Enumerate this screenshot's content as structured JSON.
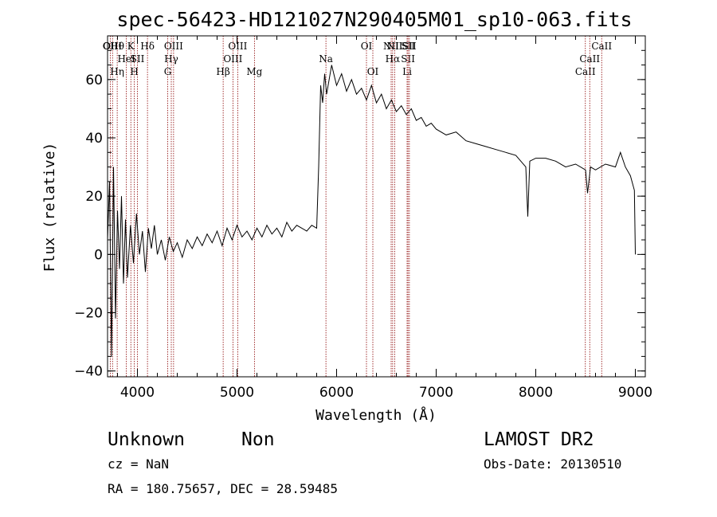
{
  "chart_data": {
    "type": "line",
    "title": "spec-56423-HD121027N290405M01_sp10-063.fits",
    "xlabel": "Wavelength (Å)",
    "ylabel": "Flux (relative)",
    "xlim": [
      3700,
      9100
    ],
    "ylim": [
      -42,
      75
    ],
    "x_ticks": [
      4000,
      5000,
      6000,
      7000,
      8000,
      9000
    ],
    "y_ticks": [
      -40,
      -20,
      0,
      20,
      40,
      60
    ],
    "grid": false,
    "series": [
      {
        "x": [
          3700,
          3720,
          3740,
          3760,
          3780,
          3800,
          3820,
          3840,
          3860,
          3880,
          3900,
          3930,
          3960,
          3990,
          4020,
          4050,
          4080,
          4110,
          4140,
          4170,
          4200,
          4240,
          4280,
          4320,
          4360,
          4400,
          4450,
          4500,
          4550,
          4600,
          4650,
          4700,
          4750,
          4800,
          4850,
          4900,
          4950,
          5000,
          5050,
          5100,
          5150,
          5200,
          5250,
          5300,
          5350,
          5400,
          5450,
          5500,
          5550,
          5600,
          5650,
          5700,
          5750,
          5800,
          5820,
          5840,
          5860,
          5880,
          5900,
          5950,
          6000,
          6050,
          6100,
          6150,
          6200,
          6250,
          6300,
          6350,
          6400,
          6450,
          6500,
          6550,
          6600,
          6650,
          6700,
          6750,
          6800,
          6850,
          6900,
          6950,
          7000,
          7100,
          7200,
          7300,
          7400,
          7500,
          7600,
          7700,
          7800,
          7900,
          7920,
          7940,
          8000,
          8100,
          8200,
          8300,
          8400,
          8500,
          8520,
          8550,
          8600,
          8700,
          8800,
          8850,
          8900,
          8950,
          8990,
          9000
        ],
        "y": [
          5,
          25,
          -35,
          30,
          -22,
          15,
          -5,
          20,
          -10,
          12,
          -8,
          10,
          -3,
          14,
          0,
          8,
          -6,
          9,
          2,
          10,
          0,
          5,
          -2,
          6,
          1,
          4,
          -1,
          5,
          2,
          6,
          3,
          7,
          4,
          8,
          3,
          9,
          5,
          10,
          6,
          8,
          5,
          9,
          6,
          10,
          7,
          9,
          6,
          11,
          8,
          10,
          9,
          8,
          10,
          9,
          30,
          58,
          52,
          62,
          55,
          65,
          58,
          62,
          56,
          60,
          55,
          57,
          53,
          58,
          52,
          55,
          50,
          53,
          49,
          51,
          48,
          50,
          46,
          47,
          44,
          45,
          43,
          41,
          42,
          39,
          38,
          37,
          36,
          35,
          34,
          30,
          13,
          32,
          33,
          33,
          32,
          30,
          31,
          29,
          21,
          30,
          29,
          31,
          30,
          35,
          30,
          27,
          22,
          0
        ]
      }
    ],
    "line_marks": [
      {
        "wl": 3727,
        "labels": [
          "OII"
        ]
      },
      {
        "wl": 3750,
        "labels": [
          "OIII"
        ]
      },
      {
        "wl": 3797,
        "labels": [
          "Hθ",
          "",
          "Hη"
        ]
      },
      {
        "wl": 3889,
        "labels": [
          "",
          "HeI"
        ]
      },
      {
        "wl": 3934,
        "labels": [
          "K"
        ]
      },
      {
        "wl": 3969,
        "labels": [
          "",
          "",
          "H"
        ]
      },
      {
        "wl": 4000,
        "labels": [
          "",
          "SII"
        ]
      },
      {
        "wl": 4101,
        "labels": [
          "Hδ"
        ]
      },
      {
        "wl": 4304,
        "labels": [
          "",
          "",
          "G"
        ]
      },
      {
        "wl": 4340,
        "labels": [
          "",
          "Hγ"
        ]
      },
      {
        "wl": 4363,
        "labels": [
          "OIII"
        ]
      },
      {
        "wl": 4861,
        "labels": [
          "",
          "",
          "Hβ"
        ]
      },
      {
        "wl": 4959,
        "labels": [
          "",
          "OIII"
        ]
      },
      {
        "wl": 5007,
        "labels": [
          "OIII"
        ]
      },
      {
        "wl": 5175,
        "labels": [
          "",
          "",
          "Mg"
        ]
      },
      {
        "wl": 5893,
        "labels": [
          "",
          "Na"
        ]
      },
      {
        "wl": 6300,
        "labels": [
          "OI"
        ]
      },
      {
        "wl": 6364,
        "labels": [
          "",
          "",
          "OI"
        ]
      },
      {
        "wl": 6548,
        "labels": [
          "NII"
        ]
      },
      {
        "wl": 6563,
        "labels": [
          "",
          "Hα"
        ]
      },
      {
        "wl": 6583,
        "labels": [
          "NII"
        ]
      },
      {
        "wl": 6708,
        "labels": [
          "",
          "",
          "Li"
        ]
      },
      {
        "wl": 6717,
        "labels": [
          "SII",
          "SII"
        ]
      },
      {
        "wl": 6731,
        "labels": [
          "SII"
        ]
      },
      {
        "wl": 8498,
        "labels": [
          "",
          "",
          "CaII"
        ]
      },
      {
        "wl": 8542,
        "labels": [
          "",
          "CaII"
        ]
      },
      {
        "wl": 8662,
        "labels": [
          "CaII"
        ]
      }
    ]
  },
  "footer": {
    "object_class": "Unknown",
    "object_subclass": "Non",
    "survey": "LAMOST DR2",
    "redshift": "cz = NaN",
    "obs_date": "Obs-Date: 20130510",
    "coords": "RA = 180.75657, DEC =  28.59485"
  },
  "colors": {
    "spectrum": "#000000",
    "line_marks": "#8b0000"
  }
}
